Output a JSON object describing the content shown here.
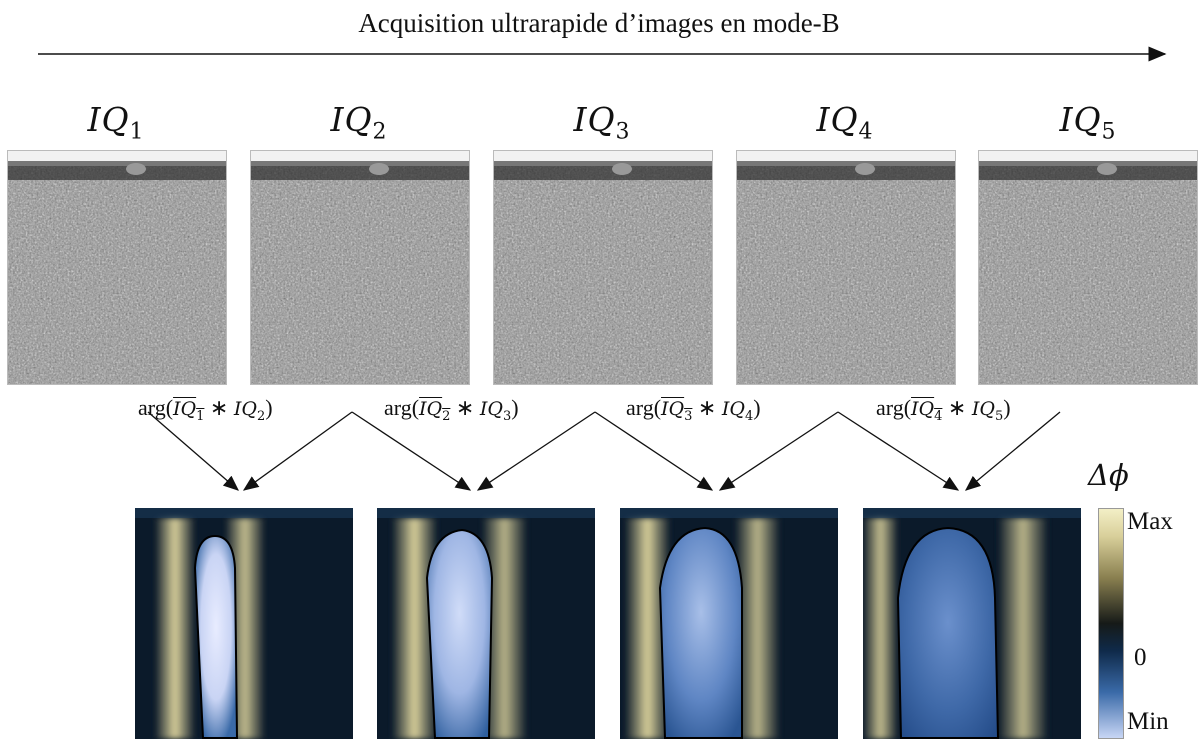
{
  "title": "Acquisition ultrarapide d’images en mode-B",
  "frames": [
    {
      "name": "IQ",
      "sub": "1"
    },
    {
      "name": "IQ",
      "sub": "2"
    },
    {
      "name": "IQ",
      "sub": "3"
    },
    {
      "name": "IQ",
      "sub": "4"
    },
    {
      "name": "IQ",
      "sub": "5"
    }
  ],
  "ops": [
    {
      "fn": "arg(",
      "a": "IQ",
      "asub": "1",
      "op": " ∗ ",
      "b": "IQ",
      "bsub": "2",
      "close": ")"
    },
    {
      "fn": "arg(",
      "a": "IQ",
      "asub": "2",
      "op": " ∗ ",
      "b": "IQ",
      "bsub": "3",
      "close": ")"
    },
    {
      "fn": "arg(",
      "a": "IQ",
      "asub": "3",
      "op": " ∗ ",
      "b": "IQ",
      "bsub": "4",
      "close": ")"
    },
    {
      "fn": "arg(",
      "a": "IQ",
      "asub": "4",
      "op": " ∗ ",
      "b": "IQ",
      "bsub": "5",
      "close": ")"
    }
  ],
  "colorbar": {
    "symbol": "Δϕ",
    "max": "Max",
    "zero": "0",
    "min": "Min"
  },
  "colors": {
    "arrow": "#111111",
    "map_dark": "#0b1a2a",
    "map_gold": "#d8cf9a",
    "map_blue": "#3a6aa8",
    "map_light": "#e8ecff"
  }
}
